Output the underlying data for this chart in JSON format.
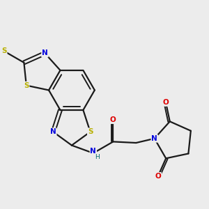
{
  "background_color": "#ececec",
  "bond_color": "#1a1a1a",
  "figsize": [
    3.0,
    3.0
  ],
  "dpi": 100,
  "col_S_yellow": "#b8b000",
  "col_N": "#0000dd",
  "col_O": "#dd0000",
  "col_H": "#006868",
  "lw": 1.6,
  "lw_dbl": 1.4,
  "fs": 7.5,
  "atom_bg": "#ececec",
  "xlim": [
    -0.5,
    5.8
  ],
  "ylim": [
    -1.8,
    2.8
  ]
}
